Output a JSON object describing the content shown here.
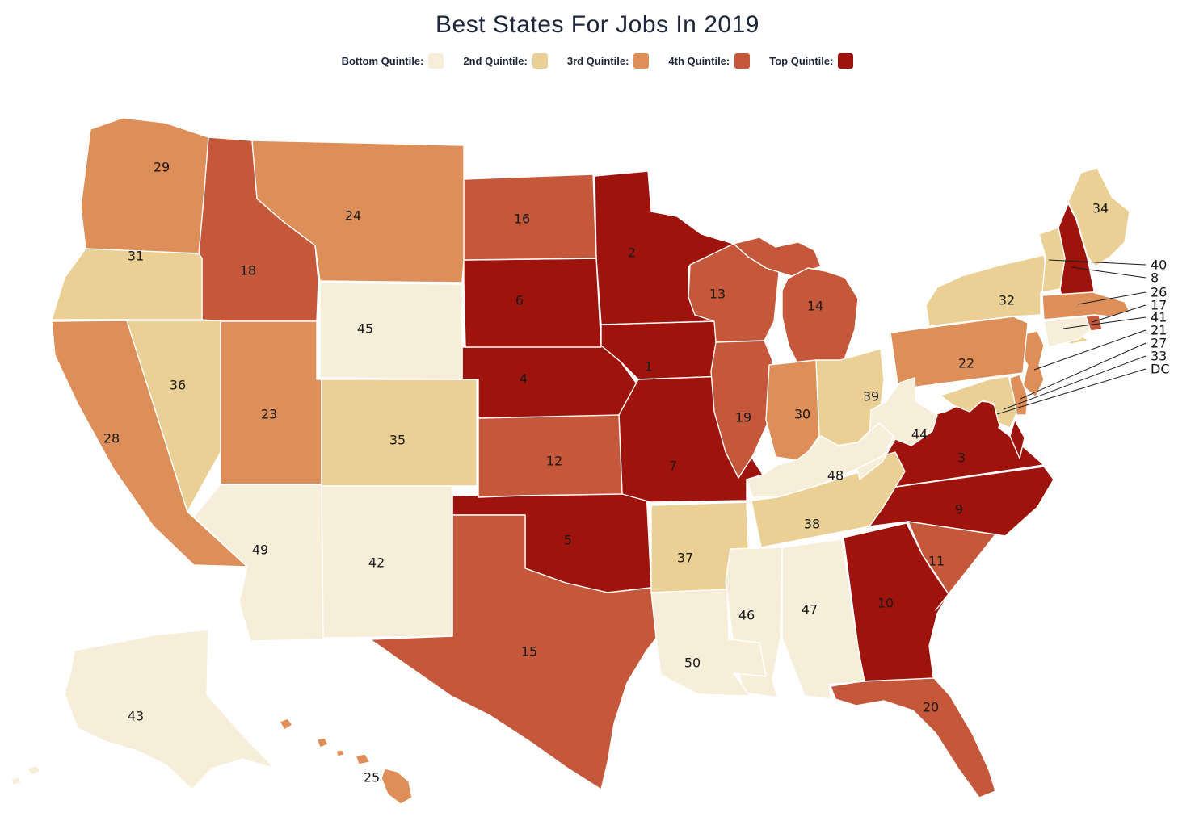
{
  "title": "Best States For Jobs In 2019",
  "legend": {
    "items": [
      {
        "id": "bottom",
        "label": "Bottom Quintile:",
        "color": "#F7EEDA"
      },
      {
        "id": "second",
        "label": "2nd Quintile:",
        "color": "#EBD096"
      },
      {
        "id": "third",
        "label": "3rd Quintile:",
        "color": "#DE8F59"
      },
      {
        "id": "fourth",
        "label": "4th Quintile:",
        "color": "#C5573B"
      },
      {
        "id": "top",
        "label": "Top Quintile:",
        "color": "#9E130B"
      }
    ]
  },
  "map": {
    "quintile_colors": {
      "bottom": "#F7EEDA",
      "second": "#EBD096",
      "third": "#DE8F59",
      "fourth": "#C5573B",
      "top": "#9E130B"
    },
    "border_color": "#FFFFFF",
    "label_color": "#1A1A1A",
    "callouts": [
      {
        "label": "40",
        "state": "VT"
      },
      {
        "label": "8",
        "state": "NH"
      },
      {
        "label": "26",
        "state": "MA"
      },
      {
        "label": "17",
        "state": "RI"
      },
      {
        "label": "41",
        "state": "CT"
      },
      {
        "label": "21",
        "state": "NJ"
      },
      {
        "label": "27",
        "state": "DE"
      },
      {
        "label": "33",
        "state": "MD"
      },
      {
        "label": "DC",
        "state": "DC"
      }
    ]
  },
  "chart_data": {
    "type": "choropleth-map",
    "title": "Best States For Jobs In 2019",
    "legend_labels": [
      "Bottom Quintile:",
      "2nd Quintile:",
      "3rd Quintile:",
      "4th Quintile:",
      "Top Quintile:"
    ],
    "legend_position": "top",
    "rankings": [
      {
        "rank": 1,
        "state": "Iowa",
        "abbr": "IA",
        "quintile": "top"
      },
      {
        "rank": 2,
        "state": "Minnesota",
        "abbr": "MN",
        "quintile": "top"
      },
      {
        "rank": 3,
        "state": "Virginia",
        "abbr": "VA",
        "quintile": "top"
      },
      {
        "rank": 4,
        "state": "Nebraska",
        "abbr": "NE",
        "quintile": "top"
      },
      {
        "rank": 5,
        "state": "Oklahoma",
        "abbr": "OK",
        "quintile": "top"
      },
      {
        "rank": 6,
        "state": "South Dakota",
        "abbr": "SD",
        "quintile": "top"
      },
      {
        "rank": 7,
        "state": "Missouri",
        "abbr": "MO",
        "quintile": "top"
      },
      {
        "rank": 8,
        "state": "New Hampshire",
        "abbr": "NH",
        "quintile": "top"
      },
      {
        "rank": 9,
        "state": "North Carolina",
        "abbr": "NC",
        "quintile": "top"
      },
      {
        "rank": 10,
        "state": "Georgia",
        "abbr": "GA",
        "quintile": "top"
      },
      {
        "rank": 11,
        "state": "South Carolina",
        "abbr": "SC",
        "quintile": "fourth"
      },
      {
        "rank": 12,
        "state": "Kansas",
        "abbr": "KS",
        "quintile": "fourth"
      },
      {
        "rank": 13,
        "state": "Wisconsin",
        "abbr": "WI",
        "quintile": "fourth"
      },
      {
        "rank": 14,
        "state": "Michigan",
        "abbr": "MI",
        "quintile": "fourth"
      },
      {
        "rank": 15,
        "state": "Texas",
        "abbr": "TX",
        "quintile": "fourth"
      },
      {
        "rank": 16,
        "state": "North Dakota",
        "abbr": "ND",
        "quintile": "fourth"
      },
      {
        "rank": 17,
        "state": "Rhode Island",
        "abbr": "RI",
        "quintile": "fourth"
      },
      {
        "rank": 18,
        "state": "Idaho",
        "abbr": "ID",
        "quintile": "fourth"
      },
      {
        "rank": 19,
        "state": "Illinois",
        "abbr": "IL",
        "quintile": "fourth"
      },
      {
        "rank": 20,
        "state": "Florida",
        "abbr": "FL",
        "quintile": "fourth"
      },
      {
        "rank": 21,
        "state": "New Jersey",
        "abbr": "NJ",
        "quintile": "third"
      },
      {
        "rank": 22,
        "state": "Pennsylvania",
        "abbr": "PA",
        "quintile": "third"
      },
      {
        "rank": 23,
        "state": "Utah",
        "abbr": "UT",
        "quintile": "third"
      },
      {
        "rank": 24,
        "state": "Montana",
        "abbr": "MT",
        "quintile": "third"
      },
      {
        "rank": 25,
        "state": "Hawaii",
        "abbr": "HI",
        "quintile": "third"
      },
      {
        "rank": 26,
        "state": "Massachusetts",
        "abbr": "MA",
        "quintile": "third"
      },
      {
        "rank": 27,
        "state": "Delaware",
        "abbr": "DE",
        "quintile": "third"
      },
      {
        "rank": 28,
        "state": "California",
        "abbr": "CA",
        "quintile": "third"
      },
      {
        "rank": 29,
        "state": "Washington",
        "abbr": "WA",
        "quintile": "third"
      },
      {
        "rank": 30,
        "state": "Indiana",
        "abbr": "IN",
        "quintile": "third"
      },
      {
        "rank": 31,
        "state": "Oregon",
        "abbr": "OR",
        "quintile": "second"
      },
      {
        "rank": 32,
        "state": "New York",
        "abbr": "NY",
        "quintile": "second"
      },
      {
        "rank": 33,
        "state": "Maryland",
        "abbr": "MD",
        "quintile": "second"
      },
      {
        "rank": 34,
        "state": "Maine",
        "abbr": "ME",
        "quintile": "second"
      },
      {
        "rank": 35,
        "state": "Colorado",
        "abbr": "CO",
        "quintile": "second"
      },
      {
        "rank": 36,
        "state": "Nevada",
        "abbr": "NV",
        "quintile": "second"
      },
      {
        "rank": 37,
        "state": "Arkansas",
        "abbr": "AR",
        "quintile": "second"
      },
      {
        "rank": 38,
        "state": "Tennessee",
        "abbr": "TN",
        "quintile": "second"
      },
      {
        "rank": 39,
        "state": "Ohio",
        "abbr": "OH",
        "quintile": "second"
      },
      {
        "rank": 40,
        "state": "Vermont",
        "abbr": "VT",
        "quintile": "second"
      },
      {
        "rank": 41,
        "state": "Connecticut",
        "abbr": "CT",
        "quintile": "bottom"
      },
      {
        "rank": 42,
        "state": "New Mexico",
        "abbr": "NM",
        "quintile": "bottom"
      },
      {
        "rank": 43,
        "state": "Alaska",
        "abbr": "AK",
        "quintile": "bottom"
      },
      {
        "rank": 44,
        "state": "West Virginia",
        "abbr": "WV",
        "quintile": "bottom"
      },
      {
        "rank": 45,
        "state": "Wyoming",
        "abbr": "WY",
        "quintile": "bottom"
      },
      {
        "rank": 46,
        "state": "Mississippi",
        "abbr": "MS",
        "quintile": "bottom"
      },
      {
        "rank": 47,
        "state": "Alabama",
        "abbr": "AL",
        "quintile": "bottom"
      },
      {
        "rank": 48,
        "state": "Kentucky",
        "abbr": "KY",
        "quintile": "bottom"
      },
      {
        "rank": 49,
        "state": "Arizona",
        "abbr": "AZ",
        "quintile": "bottom"
      },
      {
        "rank": 50,
        "state": "Louisiana",
        "abbr": "LA",
        "quintile": "bottom"
      }
    ]
  }
}
